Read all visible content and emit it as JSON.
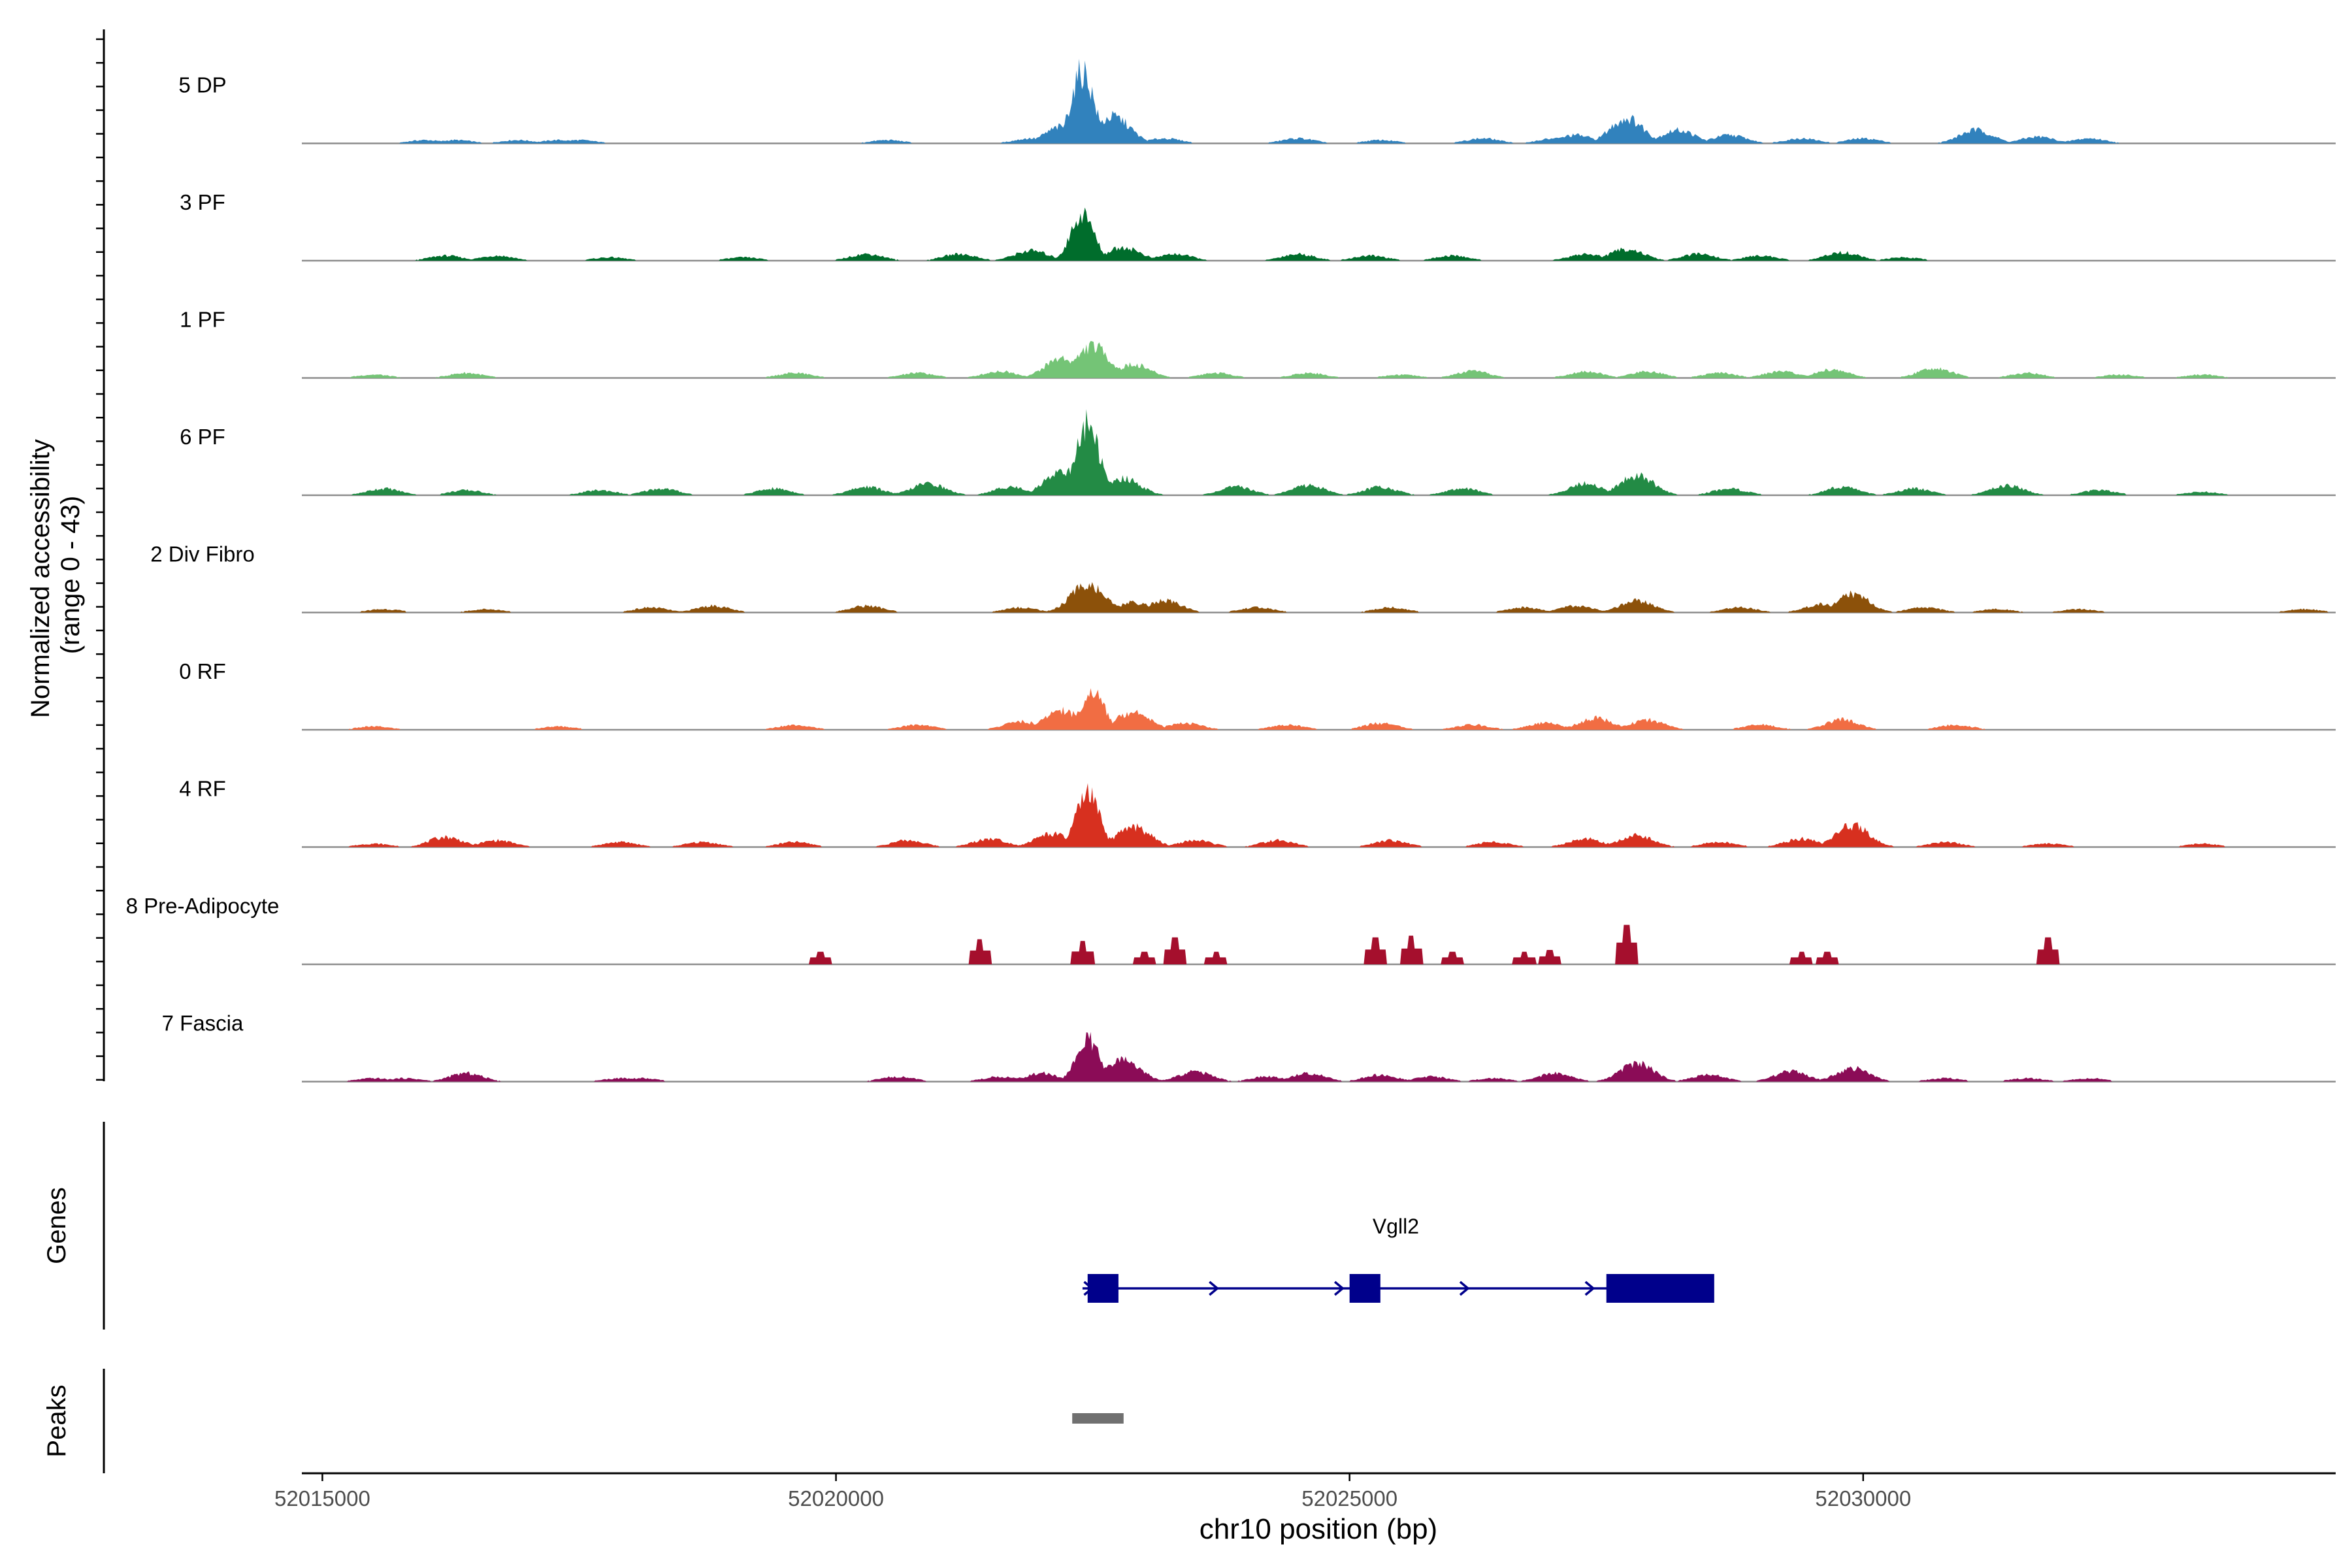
{
  "chart_data": {
    "type": "area",
    "title": "",
    "ylabel_line1": "Normalized accessibility",
    "ylabel_line2": "(range 0 - 43)",
    "y_range": [
      0,
      43
    ],
    "xlabel": "chr10 position (bp)",
    "x_range": [
      52014800,
      52034600
    ],
    "x_ticks": [
      52015000,
      52020000,
      52025000,
      52030000
    ],
    "x_tick_labels": [
      "52015000",
      "52020000",
      "52025000",
      "52030000"
    ],
    "tracks": [
      {
        "name": "5 DP",
        "color": "#3182bd",
        "peaks": [
          [
            52016000,
            2
          ],
          [
            52016300,
            2
          ],
          [
            52016900,
            2
          ],
          [
            52017300,
            2
          ],
          [
            52017500,
            2
          ],
          [
            52020500,
            2
          ],
          [
            52021900,
            3
          ],
          [
            52022200,
            10
          ],
          [
            52022400,
            43
          ],
          [
            52022700,
            16
          ],
          [
            52023200,
            3
          ],
          [
            52024500,
            3
          ],
          [
            52025300,
            2
          ],
          [
            52026300,
            3
          ],
          [
            52027000,
            3
          ],
          [
            52027200,
            5
          ],
          [
            52027700,
            15
          ],
          [
            52028200,
            8
          ],
          [
            52028700,
            5
          ],
          [
            52029400,
            3
          ],
          [
            52030000,
            3
          ],
          [
            52031100,
            8
          ],
          [
            52031700,
            4
          ],
          [
            52032200,
            3
          ]
        ]
      },
      {
        "name": "3 PF",
        "color": "#006d2c",
        "peaks": [
          [
            52016200,
            3
          ],
          [
            52016700,
            3
          ],
          [
            52017800,
            2
          ],
          [
            52019100,
            2
          ],
          [
            52020300,
            4
          ],
          [
            52021200,
            4
          ],
          [
            52021900,
            6
          ],
          [
            52022400,
            28
          ],
          [
            52022800,
            8
          ],
          [
            52023300,
            4
          ],
          [
            52024500,
            4
          ],
          [
            52025200,
            3
          ],
          [
            52026000,
            3
          ],
          [
            52027300,
            4
          ],
          [
            52027700,
            7
          ],
          [
            52028400,
            4
          ],
          [
            52029000,
            3
          ],
          [
            52029800,
            5
          ],
          [
            52030400,
            2
          ]
        ]
      },
      {
        "name": "1 PF",
        "color": "#74c476",
        "peaks": [
          [
            52015500,
            2
          ],
          [
            52016400,
            3
          ],
          [
            52019600,
            3
          ],
          [
            52020800,
            3
          ],
          [
            52021600,
            4
          ],
          [
            52022200,
            12
          ],
          [
            52022500,
            19
          ],
          [
            52022900,
            8
          ],
          [
            52023700,
            3
          ],
          [
            52024600,
            3
          ],
          [
            52025500,
            2
          ],
          [
            52026200,
            4
          ],
          [
            52027300,
            4
          ],
          [
            52027900,
            4
          ],
          [
            52028600,
            3
          ],
          [
            52029200,
            4
          ],
          [
            52029700,
            5
          ],
          [
            52030700,
            6
          ],
          [
            52031600,
            3
          ],
          [
            52032500,
            2
          ],
          [
            52033300,
            2
          ]
        ]
      },
      {
        "name": "6 PF",
        "color": "#238b45",
        "peaks": [
          [
            52015600,
            4
          ],
          [
            52016400,
            3
          ],
          [
            52017700,
            3
          ],
          [
            52018300,
            4
          ],
          [
            52019400,
            4
          ],
          [
            52020300,
            5
          ],
          [
            52020900,
            7
          ],
          [
            52021700,
            5
          ],
          [
            52022200,
            15
          ],
          [
            52022450,
            43
          ],
          [
            52022800,
            10
          ],
          [
            52023900,
            5
          ],
          [
            52024600,
            6
          ],
          [
            52025300,
            5
          ],
          [
            52026100,
            4
          ],
          [
            52027300,
            7
          ],
          [
            52027800,
            12
          ],
          [
            52028700,
            4
          ],
          [
            52029800,
            5
          ],
          [
            52030500,
            4
          ],
          [
            52031400,
            6
          ],
          [
            52032300,
            3
          ],
          [
            52033300,
            2
          ]
        ]
      },
      {
        "name": "2 Div Fibro",
        "color": "#8c510a",
        "peaks": [
          [
            52015600,
            2
          ],
          [
            52016600,
            2
          ],
          [
            52018200,
            3
          ],
          [
            52018800,
            4
          ],
          [
            52020300,
            4
          ],
          [
            52021800,
            3
          ],
          [
            52022450,
            17
          ],
          [
            52022900,
            6
          ],
          [
            52023200,
            7
          ],
          [
            52024100,
            3
          ],
          [
            52025400,
            3
          ],
          [
            52026700,
            3
          ],
          [
            52027200,
            4
          ],
          [
            52027800,
            7
          ],
          [
            52028800,
            3
          ],
          [
            52029600,
            5
          ],
          [
            52029900,
            11
          ],
          [
            52030600,
            3
          ],
          [
            52031300,
            2
          ],
          [
            52032100,
            2
          ],
          [
            52034300,
            2
          ]
        ]
      },
      {
        "name": "0 RF",
        "color": "#f16d43",
        "peaks": [
          [
            52015500,
            2
          ],
          [
            52017300,
            2
          ],
          [
            52019600,
            3
          ],
          [
            52020800,
            3
          ],
          [
            52021800,
            5
          ],
          [
            52022200,
            12
          ],
          [
            52022500,
            23
          ],
          [
            52022900,
            11
          ],
          [
            52023400,
            4
          ],
          [
            52024400,
            3
          ],
          [
            52025300,
            4
          ],
          [
            52026200,
            3
          ],
          [
            52026900,
            4
          ],
          [
            52027400,
            7
          ],
          [
            52027900,
            6
          ],
          [
            52029000,
            3
          ],
          [
            52029800,
            6
          ],
          [
            52030900,
            3
          ]
        ]
      },
      {
        "name": "4 RF",
        "color": "#d7301f",
        "peaks": [
          [
            52015500,
            2
          ],
          [
            52016200,
            6
          ],
          [
            52016700,
            4
          ],
          [
            52017900,
            3
          ],
          [
            52018700,
            3
          ],
          [
            52019600,
            3
          ],
          [
            52020700,
            4
          ],
          [
            52021500,
            5
          ],
          [
            52022100,
            8
          ],
          [
            52022450,
            32
          ],
          [
            52022900,
            12
          ],
          [
            52023500,
            4
          ],
          [
            52024300,
            4
          ],
          [
            52025400,
            4
          ],
          [
            52026400,
            3
          ],
          [
            52027300,
            5
          ],
          [
            52027800,
            7
          ],
          [
            52028600,
            3
          ],
          [
            52029400,
            5
          ],
          [
            52029900,
            13
          ],
          [
            52030800,
            3
          ],
          [
            52031800,
            2
          ],
          [
            52033300,
            2
          ]
        ]
      },
      {
        "name": "8 Pre-Adipocyte",
        "color": "#a50f2d",
        "peaks": [
          [
            52019850,
            7
          ],
          [
            52021400,
            14
          ],
          [
            52022400,
            13
          ],
          [
            52023000,
            7
          ],
          [
            52023300,
            15
          ],
          [
            52023700,
            7
          ],
          [
            52025250,
            15
          ],
          [
            52025600,
            16
          ],
          [
            52026000,
            7
          ],
          [
            52026700,
            7
          ],
          [
            52026950,
            8
          ],
          [
            52027700,
            22
          ],
          [
            52029400,
            7
          ],
          [
            52029650,
            7
          ],
          [
            52031800,
            15
          ]
        ]
      },
      {
        "name": "7 Fascia",
        "color": "#8b0c57",
        "peaks": [
          [
            52015500,
            2
          ],
          [
            52015800,
            2
          ],
          [
            52016400,
            5
          ],
          [
            52017900,
            2
          ],
          [
            52018100,
            2
          ],
          [
            52020600,
            3
          ],
          [
            52021600,
            3
          ],
          [
            52022000,
            5
          ],
          [
            52022450,
            25
          ],
          [
            52022800,
            13
          ],
          [
            52023500,
            6
          ],
          [
            52024200,
            3
          ],
          [
            52024600,
            5
          ],
          [
            52025300,
            4
          ],
          [
            52025800,
            3
          ],
          [
            52026400,
            2
          ],
          [
            52027000,
            5
          ],
          [
            52027800,
            11
          ],
          [
            52028500,
            4
          ],
          [
            52029300,
            6
          ],
          [
            52029900,
            8
          ],
          [
            52030800,
            2
          ],
          [
            52031600,
            2
          ],
          [
            52032200,
            2
          ]
        ]
      }
    ],
    "genes_label": "Genes",
    "genes": [
      {
        "name": "Vgll2",
        "start": 52022400,
        "end": 52028500,
        "exons": [
          [
            52022450,
            52022750
          ],
          [
            52025000,
            52025300
          ],
          [
            52027500,
            52028550
          ]
        ],
        "strand": "+",
        "color": "#00008b"
      }
    ],
    "peaks_label": "Peaks",
    "peak_regions": [
      [
        52022300,
        52022800
      ]
    ]
  }
}
